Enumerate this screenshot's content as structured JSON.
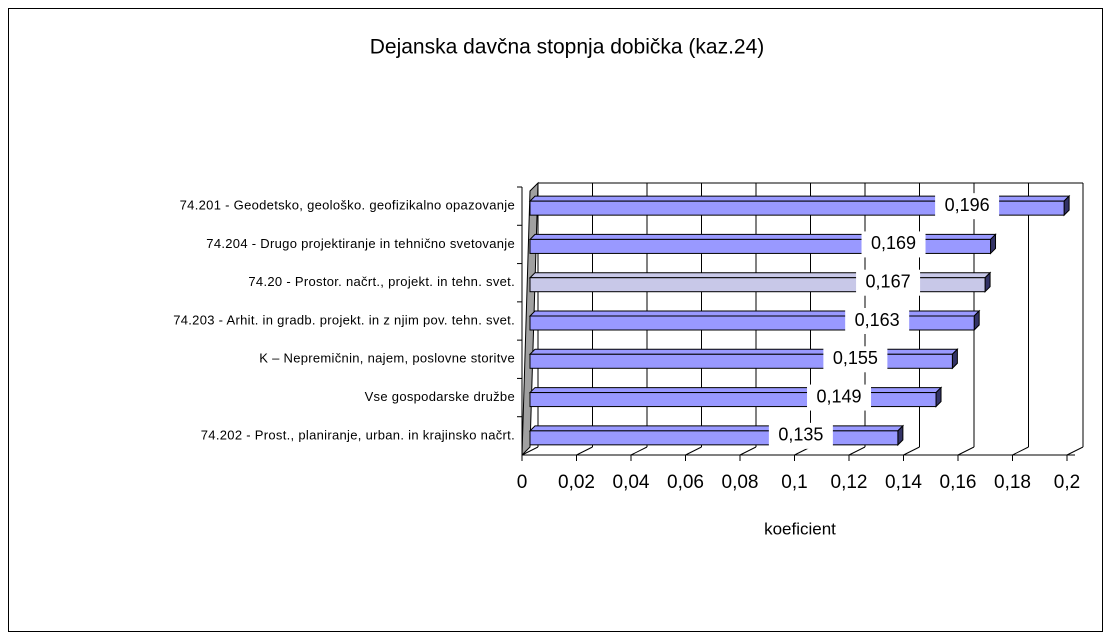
{
  "chart_data": {
    "type": "bar",
    "orientation": "horizontal",
    "title": "Dejanska davčna stopnja dobička (kaz.24)",
    "x_label": "koeficient",
    "categories": [
      "74.201 - Geodetsko, geološko. geofizikalno opazovanje",
      "74.204 - Drugo projektiranje in tehnično svetovanje",
      "74.20 - Prostor. načrt., projekt. in tehn. svet.",
      "74.203 - Arhit. in gradb. projekt. in z njim pov. tehn. svet.",
      "K – Nepremičnin, najem, poslovne storitve",
      "Vse gospodarske družbe",
      "74.202 - Prost., planiranje, urban. in krajinsko načrt."
    ],
    "values": [
      0.196,
      0.169,
      0.167,
      0.163,
      0.155,
      0.149,
      0.135
    ],
    "value_labels": [
      "0,196",
      "0,169",
      "0,167",
      "0,163",
      "0,155",
      "0,149",
      "0,135"
    ],
    "colors": [
      "#9999ff",
      "#9999ff",
      "#c8c8e8",
      "#9999ff",
      "#9999ff",
      "#9999ff",
      "#9999ff"
    ],
    "xlim": [
      0,
      0.2
    ],
    "xticks": [
      0,
      {
        "value": 0.02,
        "label": "0,02"
      },
      {
        "value": 0.04,
        "label": "0,04"
      },
      {
        "value": 0.06,
        "label": "0,06"
      },
      {
        "value": 0.08,
        "label": "0,08"
      },
      {
        "value": 0.1,
        "label": "0,1"
      },
      {
        "value": 0.12,
        "label": "0,12"
      },
      {
        "value": 0.14,
        "label": "0,14"
      },
      {
        "value": 0.16,
        "label": "0,16"
      },
      {
        "value": 0.18,
        "label": "0,18"
      },
      {
        "value": 0.2,
        "label": "0,2"
      }
    ],
    "grid": true
  }
}
